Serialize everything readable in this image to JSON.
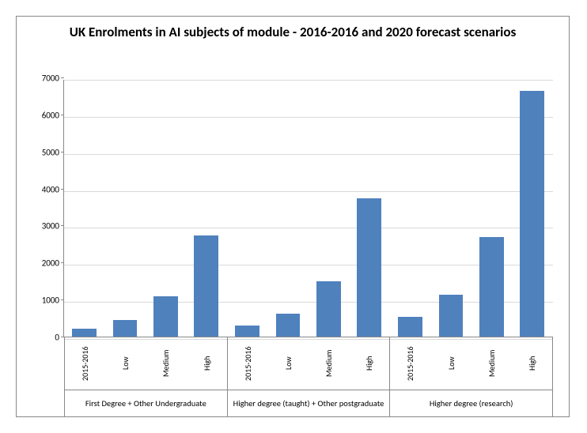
{
  "chart": {
    "type": "bar",
    "title": "UK Enrolments in AI subjects of module - 2016-2016 and 2020 forecast scenarios",
    "title_fontsize": 17,
    "title_fontweight": "bold",
    "background_color": "#ffffff",
    "border_color": "#888888",
    "bar_color": "#4f81bd",
    "grid_color": "#d9d9d9",
    "axis_color": "#888888",
    "label_fontsize": 11,
    "xlabel_fontsize": 10.5,
    "ylim": [
      0,
      7000
    ],
    "ytick_step": 1000,
    "yticks": [
      0,
      1000,
      2000,
      3000,
      4000,
      5000,
      6000,
      7000
    ],
    "groups": [
      {
        "label": "First Degree + Other Undergraduate",
        "bars": [
          {
            "label": "2015-2016",
            "value": 230
          },
          {
            "label": "Low",
            "value": 470
          },
          {
            "label": "Medium",
            "value": 1120
          },
          {
            "label": "High",
            "value": 2760
          }
        ]
      },
      {
        "label": "Higher degree (taught) + Other postgraduate",
        "bars": [
          {
            "label": "2015-2016",
            "value": 310
          },
          {
            "label": "Low",
            "value": 640
          },
          {
            "label": "Medium",
            "value": 1520
          },
          {
            "label": "High",
            "value": 3750
          }
        ]
      },
      {
        "label": "Higher degree (research)",
        "bars": [
          {
            "label": "2015-2016",
            "value": 560
          },
          {
            "label": "Low",
            "value": 1150
          },
          {
            "label": "Medium",
            "value": 2720
          },
          {
            "label": "High",
            "value": 6650
          }
        ]
      }
    ]
  }
}
